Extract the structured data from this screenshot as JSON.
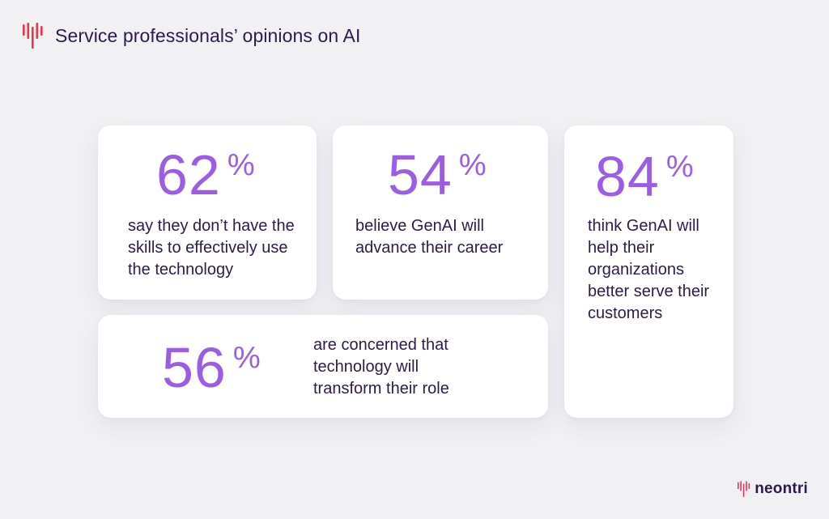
{
  "header": {
    "logo_icon": "neontri-waveform-icon",
    "title": "Service professionals’ opinions on AI"
  },
  "colors": {
    "accent_purple": "#9b5de5",
    "text_dark": "#2d1a4a",
    "logo_red": "#e8344e",
    "background": "#f1f1f4",
    "card": "#ffffff"
  },
  "cards": [
    {
      "value": "62",
      "unit": "%",
      "text": "say they don’t have the skills to effectively use the technology"
    },
    {
      "value": "54",
      "unit": "%",
      "text": "believe GenAI will advance their career"
    },
    {
      "value": "84",
      "unit": "%",
      "text": "think GenAI will help their organizations better serve their customers"
    },
    {
      "value": "56",
      "unit": "%",
      "text": "are concerned that technology will transform their role"
    }
  ],
  "footer": {
    "logo_icon": "neontri-waveform-icon",
    "brand": "neontri"
  }
}
